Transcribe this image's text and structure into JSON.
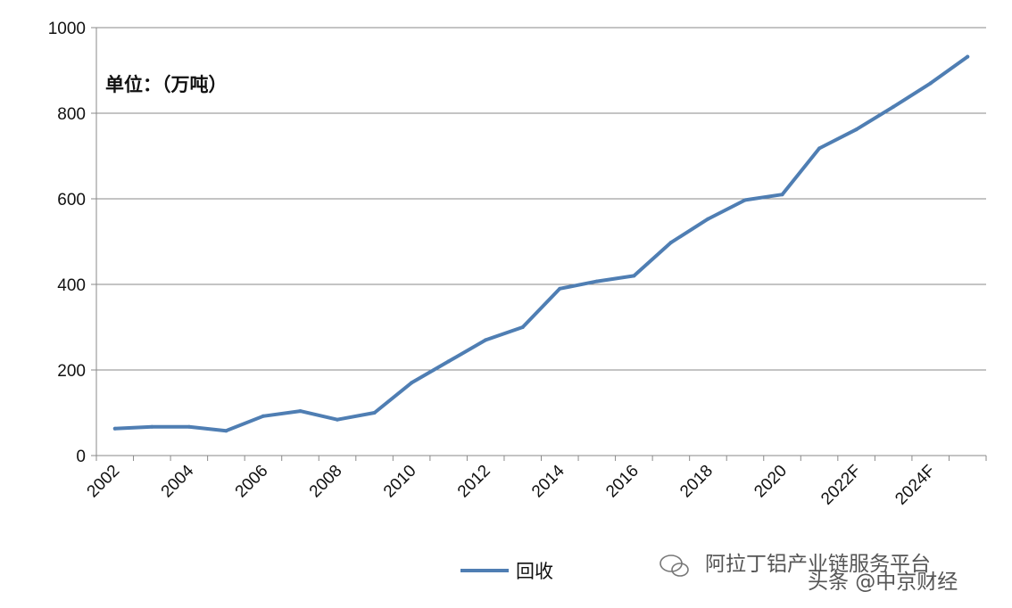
{
  "chart_data": {
    "type": "line",
    "unit_label": "单位：（万吨）",
    "x": [
      "2002",
      "2003",
      "2004",
      "2005",
      "2006",
      "2007",
      "2008",
      "2009",
      "2010",
      "2011",
      "2012",
      "2013",
      "2014",
      "2015",
      "2016",
      "2017",
      "2018",
      "2019",
      "2020",
      "2021",
      "2022F",
      "2023F",
      "2024F",
      "2025F"
    ],
    "x_tick_labels": [
      "2002",
      "2004",
      "2006",
      "2008",
      "2010",
      "2012",
      "2014",
      "2016",
      "2018",
      "2020",
      "2022F",
      "2024F"
    ],
    "series": [
      {
        "name": "回收",
        "color": "#4f7eb3",
        "values": [
          63,
          67,
          67,
          58,
          92,
          104,
          84,
          100,
          170,
          220,
          270,
          300,
          390,
          407,
          420,
          498,
          553,
          597,
          610,
          718,
          762,
          815,
          870,
          932
        ]
      }
    ],
    "ylim": [
      0,
      1000
    ],
    "y_ticks": [
      0,
      200,
      400,
      600,
      800,
      1000
    ],
    "grid": true,
    "legend_position": "bottom"
  },
  "watermark": {
    "line1": "阿拉丁铝产业链服务平台",
    "line2": "头条 @中京财经"
  }
}
